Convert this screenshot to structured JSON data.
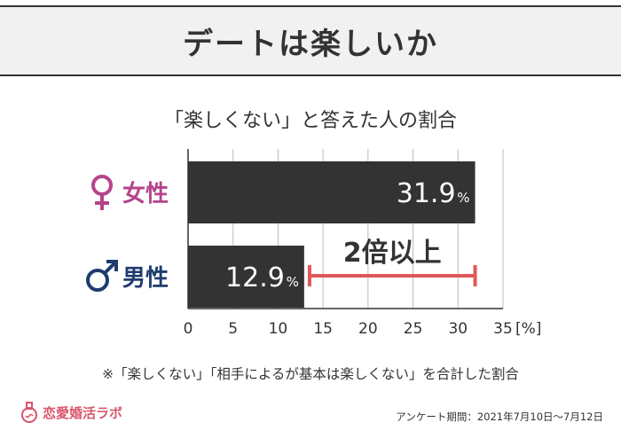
{
  "header": {
    "title": "デートは楽しいか"
  },
  "chart_data": {
    "type": "bar",
    "orientation": "horizontal",
    "title": "「楽しくない」と答えた人の割合",
    "categories": [
      "女性",
      "男性"
    ],
    "series": [
      {
        "values": [
          31.9,
          12.9
        ]
      }
    ],
    "value_suffix": "%",
    "xlim": [
      0,
      35
    ],
    "xticks": [
      0,
      5,
      10,
      15,
      20,
      25,
      30,
      35
    ],
    "x_unit_label": "[%]",
    "grid": true,
    "annotation": {
      "text": "2倍以上",
      "from": 12.9,
      "to": 31.9
    },
    "colors": {
      "bar": "#333333",
      "female_icon": "#b5448a",
      "male_icon": "#1e3c6e",
      "annotation": "#e05858",
      "grid": "#bbbbbb"
    }
  },
  "note": "※「楽しくない」「相手によるが基本は楽しくない」を合計した割合",
  "brand": {
    "name": "恋愛婚活ラボ"
  },
  "survey": "アンケート期間：2021年7月10日〜7月12日"
}
